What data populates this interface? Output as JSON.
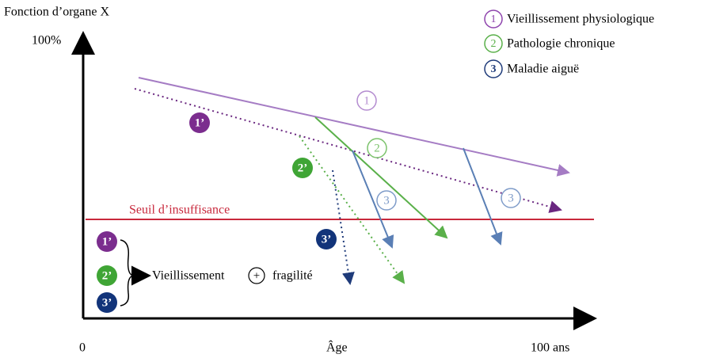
{
  "axes": {
    "y_label": "Fonction d’organe X",
    "y_top": "100%",
    "x_origin": "0",
    "x_label": "Âge",
    "x_end": "100 ans"
  },
  "legend": [
    {
      "number": "1",
      "label": "Vieillissement physiologique"
    },
    {
      "number": "2",
      "label": "Pathologie chronique"
    },
    {
      "number": "3",
      "label": "Maladie aiguë"
    }
  ],
  "threshold": "Seuil d’insuffisance",
  "curve_markers": [
    "1",
    "2",
    "3",
    "3"
  ],
  "frail_markers": [
    "1’",
    "2’",
    "3’"
  ],
  "summary": {
    "markers": [
      "1’",
      "2’",
      "3’"
    ],
    "text1": "Vieillissement",
    "plus": "+",
    "text2": "fragilité"
  }
}
